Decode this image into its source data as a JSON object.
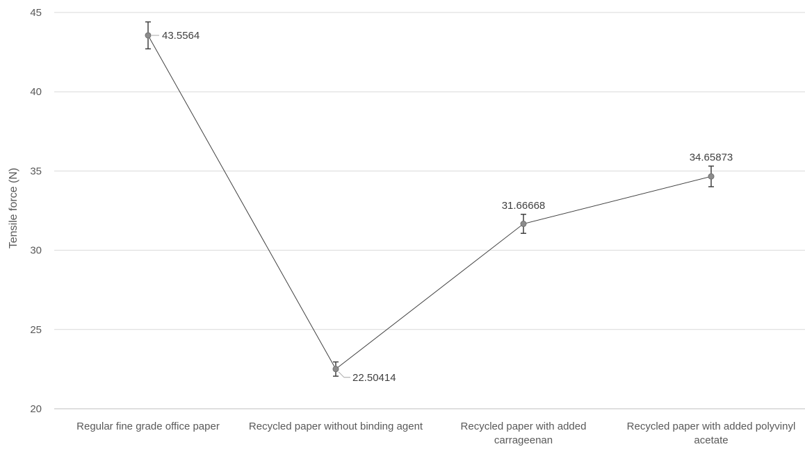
{
  "chart_data": {
    "type": "line",
    "title": "",
    "xlabel": "",
    "ylabel": "Tensile force (N)",
    "ylim": [
      20,
      45
    ],
    "yticks": [
      20,
      25,
      30,
      35,
      40,
      45
    ],
    "grid": true,
    "categories": [
      "Regular fine grade office paper",
      "Recycled paper without binding agent",
      "Recycled paper with added carrageenan",
      "Recycled paper with added polyvinyl acetate"
    ],
    "series": [
      {
        "values": [
          43.5564,
          22.50414,
          31.66668,
          34.65873
        ],
        "error": [
          0.85,
          0.45,
          0.6,
          0.65
        ],
        "data_labels": [
          "43.5564",
          "22.50414",
          "31.66668",
          "34.65873"
        ]
      }
    ],
    "colors": {
      "line": "#404040",
      "marker": "#8c8c8c",
      "grid": "#d9d9d9",
      "text": "#595959"
    }
  }
}
